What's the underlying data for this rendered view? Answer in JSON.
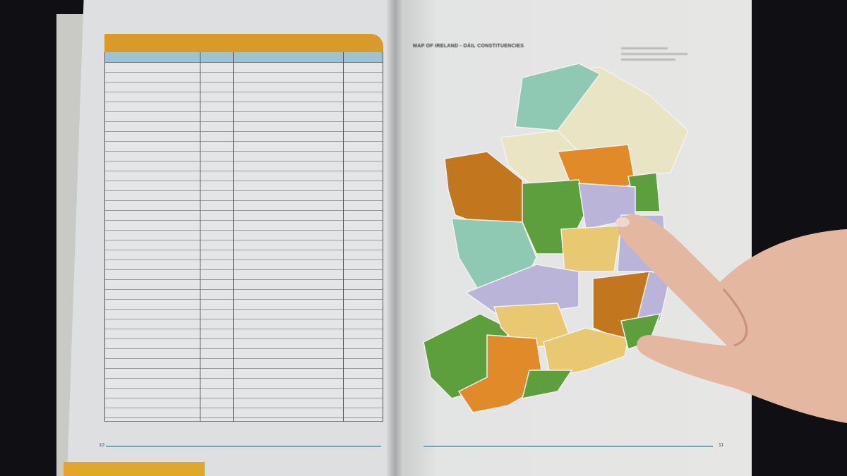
{
  "map": {
    "title": "MAP OF IRELAND - DÁIL CONSTITUENCIES",
    "region_colors": [
      "#e08a2a",
      "#c2761e",
      "#7fb24a",
      "#5d9f3c",
      "#8fc9b4",
      "#b9b4d8",
      "#e8c870",
      "#e9e4c4",
      "#d8c6a0"
    ]
  },
  "page_numbers": {
    "left": "10",
    "right": "11"
  },
  "colors": {
    "table_header": "#d99a2a",
    "table_subheader": "#9cc3d2",
    "background": "#101014"
  }
}
